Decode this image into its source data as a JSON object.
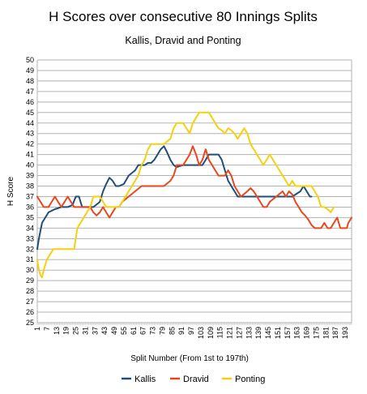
{
  "chart_data": {
    "type": "line",
    "title": "H Scores over consecutive 80 Innings Splits",
    "subtitle": "Kallis, Dravid and Ponting",
    "xlabel": "Split Number (From 1st to 197th)",
    "ylabel": "H Score",
    "ylim": [
      25,
      50
    ],
    "xlim": [
      1,
      197
    ],
    "yticks": [
      25,
      26,
      27,
      28,
      29,
      30,
      31,
      32,
      33,
      34,
      35,
      36,
      37,
      38,
      39,
      40,
      41,
      42,
      43,
      44,
      45,
      46,
      47,
      48,
      49,
      50
    ],
    "xticks": [
      1,
      7,
      13,
      19,
      25,
      31,
      37,
      43,
      49,
      55,
      61,
      67,
      73,
      79,
      85,
      91,
      97,
      103,
      109,
      115,
      121,
      127,
      133,
      139,
      145,
      151,
      157,
      163,
      169,
      175,
      181,
      187,
      193
    ],
    "grid": "horizontal",
    "legend": "bottom",
    "series": [
      {
        "name": "Kallis",
        "color": "#1f4e79",
        "points": [
          [
            1,
            32
          ],
          [
            2,
            33
          ],
          [
            4,
            34.5
          ],
          [
            6,
            35
          ],
          [
            8,
            35.5
          ],
          [
            12,
            35.8
          ],
          [
            16,
            36
          ],
          [
            20,
            36
          ],
          [
            23,
            36.2
          ],
          [
            25,
            37
          ],
          [
            27,
            37
          ],
          [
            29,
            36
          ],
          [
            32,
            36
          ],
          [
            36,
            36
          ],
          [
            40,
            36.5
          ],
          [
            42,
            37.5
          ],
          [
            44,
            38.2
          ],
          [
            46,
            38.8
          ],
          [
            48,
            38.5
          ],
          [
            50,
            38
          ],
          [
            52,
            38
          ],
          [
            55,
            38.2
          ],
          [
            58,
            39
          ],
          [
            62,
            39.5
          ],
          [
            64,
            40
          ],
          [
            68,
            40
          ],
          [
            70,
            40.2
          ],
          [
            72,
            40.2
          ],
          [
            74,
            40.5
          ],
          [
            76,
            41
          ],
          [
            78,
            41.5
          ],
          [
            80,
            41.8
          ],
          [
            82,
            41.2
          ],
          [
            84,
            40.5
          ],
          [
            86,
            40
          ],
          [
            88,
            39.8
          ],
          [
            92,
            40
          ],
          [
            96,
            40
          ],
          [
            100,
            40
          ],
          [
            104,
            40
          ],
          [
            106,
            40.5
          ],
          [
            108,
            41
          ],
          [
            114,
            41
          ],
          [
            116,
            40.5
          ],
          [
            118,
            39.5
          ],
          [
            120,
            38.5
          ],
          [
            122,
            38
          ],
          [
            124,
            37.5
          ],
          [
            126,
            37
          ],
          [
            135,
            37
          ],
          [
            150,
            37
          ],
          [
            160,
            37
          ],
          [
            165,
            37.5
          ],
          [
            167,
            38
          ],
          [
            169,
            37.5
          ],
          [
            171,
            37
          ],
          [
            172,
            37
          ]
        ]
      },
      {
        "name": "Dravid",
        "color": "#e8471e",
        "points": [
          [
            1,
            37
          ],
          [
            3,
            36.5
          ],
          [
            5,
            36
          ],
          [
            8,
            36
          ],
          [
            10,
            36.5
          ],
          [
            12,
            37
          ],
          [
            14,
            36.5
          ],
          [
            16,
            36
          ],
          [
            18,
            36.5
          ],
          [
            20,
            37
          ],
          [
            22,
            36.5
          ],
          [
            24,
            36
          ],
          [
            30,
            36
          ],
          [
            34,
            36
          ],
          [
            36,
            35.5
          ],
          [
            38,
            35.2
          ],
          [
            40,
            35.5
          ],
          [
            42,
            36
          ],
          [
            44,
            35.5
          ],
          [
            46,
            35
          ],
          [
            48,
            35.5
          ],
          [
            50,
            36
          ],
          [
            52,
            36
          ],
          [
            54,
            36.5
          ],
          [
            58,
            37
          ],
          [
            62,
            37.5
          ],
          [
            66,
            38
          ],
          [
            70,
            38
          ],
          [
            75,
            38
          ],
          [
            80,
            38
          ],
          [
            84,
            38.5
          ],
          [
            86,
            39
          ],
          [
            88,
            40
          ],
          [
            92,
            40
          ],
          [
            94,
            40.5
          ],
          [
            96,
            41
          ],
          [
            98,
            41.8
          ],
          [
            100,
            41
          ],
          [
            102,
            40
          ],
          [
            104,
            40.5
          ],
          [
            106,
            41.5
          ],
          [
            108,
            40.5
          ],
          [
            110,
            40
          ],
          [
            112,
            39.5
          ],
          [
            114,
            39
          ],
          [
            118,
            39
          ],
          [
            120,
            39.5
          ],
          [
            122,
            39
          ],
          [
            124,
            38
          ],
          [
            126,
            37.5
          ],
          [
            128,
            37
          ],
          [
            132,
            37.5
          ],
          [
            134,
            37.8
          ],
          [
            136,
            37.5
          ],
          [
            138,
            37
          ],
          [
            140,
            36.5
          ],
          [
            142,
            36
          ],
          [
            144,
            36
          ],
          [
            146,
            36.5
          ],
          [
            150,
            37
          ],
          [
            154,
            37.5
          ],
          [
            156,
            37
          ],
          [
            158,
            37.5
          ],
          [
            160,
            37.2
          ],
          [
            162,
            36.5
          ],
          [
            164,
            36
          ],
          [
            166,
            35.5
          ],
          [
            168,
            35.2
          ],
          [
            170,
            34.8
          ],
          [
            172,
            34.3
          ],
          [
            174,
            34
          ],
          [
            178,
            34
          ],
          [
            180,
            34.5
          ],
          [
            182,
            34
          ],
          [
            184,
            34
          ],
          [
            186,
            34.5
          ],
          [
            188,
            35
          ],
          [
            190,
            34
          ],
          [
            194,
            34
          ],
          [
            195,
            34.5
          ],
          [
            197,
            35
          ]
        ]
      },
      {
        "name": "Ponting",
        "color": "#f4d010",
        "points": [
          [
            1,
            31
          ],
          [
            2,
            30
          ],
          [
            3,
            29.5
          ],
          [
            4,
            29.3
          ],
          [
            5,
            30
          ],
          [
            7,
            31
          ],
          [
            9,
            31.5
          ],
          [
            11,
            32
          ],
          [
            15,
            32
          ],
          [
            20,
            32
          ],
          [
            24,
            32
          ],
          [
            25,
            33
          ],
          [
            26,
            34
          ],
          [
            28,
            34.5
          ],
          [
            30,
            35
          ],
          [
            32,
            35.5
          ],
          [
            34,
            36
          ],
          [
            36,
            37
          ],
          [
            38,
            37
          ],
          [
            40,
            37
          ],
          [
            42,
            36.5
          ],
          [
            44,
            36
          ],
          [
            48,
            36
          ],
          [
            52,
            36
          ],
          [
            54,
            36.5
          ],
          [
            56,
            37
          ],
          [
            58,
            37.5
          ],
          [
            60,
            38
          ],
          [
            62,
            38.5
          ],
          [
            64,
            39
          ],
          [
            66,
            40
          ],
          [
            68,
            40.5
          ],
          [
            70,
            41.5
          ],
          [
            72,
            42
          ],
          [
            76,
            42
          ],
          [
            80,
            42
          ],
          [
            84,
            42.5
          ],
          [
            86,
            43.5
          ],
          [
            88,
            44
          ],
          [
            92,
            44
          ],
          [
            94,
            43.5
          ],
          [
            96,
            43
          ],
          [
            98,
            44
          ],
          [
            100,
            44.5
          ],
          [
            102,
            45
          ],
          [
            108,
            45
          ],
          [
            110,
            44.5
          ],
          [
            112,
            44
          ],
          [
            114,
            43.5
          ],
          [
            116,
            43.3
          ],
          [
            118,
            43
          ],
          [
            120,
            43.5
          ],
          [
            122,
            43.3
          ],
          [
            124,
            43
          ],
          [
            126,
            42.5
          ],
          [
            128,
            43
          ],
          [
            130,
            43.5
          ],
          [
            132,
            43
          ],
          [
            134,
            42
          ],
          [
            136,
            41.5
          ],
          [
            138,
            41
          ],
          [
            140,
            40.5
          ],
          [
            142,
            40
          ],
          [
            144,
            40.5
          ],
          [
            146,
            41
          ],
          [
            148,
            40.5
          ],
          [
            150,
            40
          ],
          [
            152,
            39.5
          ],
          [
            154,
            39
          ],
          [
            156,
            38.5
          ],
          [
            158,
            38
          ],
          [
            160,
            38.5
          ],
          [
            162,
            38
          ],
          [
            164,
            38
          ],
          [
            168,
            38
          ],
          [
            172,
            38
          ],
          [
            174,
            37.5
          ],
          [
            176,
            37
          ],
          [
            178,
            36
          ],
          [
            180,
            36
          ],
          [
            182,
            35.8
          ],
          [
            184,
            35.5
          ],
          [
            186,
            36
          ]
        ]
      }
    ]
  }
}
